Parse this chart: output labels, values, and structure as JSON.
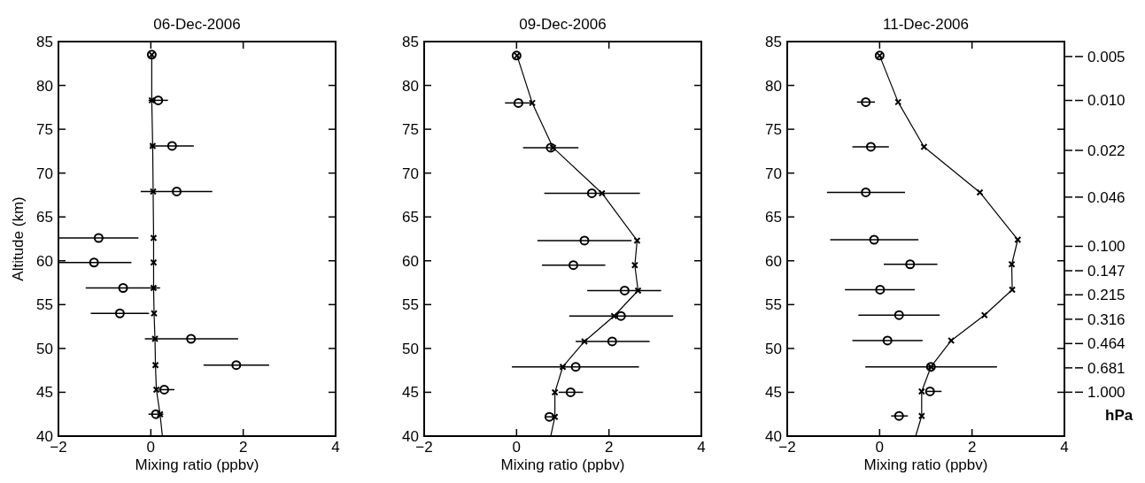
{
  "chart_data": [
    {
      "type": "scatter",
      "title": "06-Dec-2006",
      "xlabel": "Mixing ratio (ppbv)",
      "ylabel": "Altitude (km)",
      "xlim": [
        -2,
        4
      ],
      "ylim": [
        40,
        85
      ],
      "xticks": [
        -2,
        0,
        2,
        4
      ],
      "yticks": [
        40,
        45,
        50,
        55,
        60,
        65,
        70,
        75,
        80,
        85
      ],
      "series": [
        {
          "marker": "circle",
          "color": "#000000",
          "x": [
            0.02,
            0.16,
            0.46,
            0.56,
            -1.13,
            -1.23,
            -0.6,
            -0.67,
            0.87,
            1.85,
            0.29,
            0.11
          ],
          "values": [
            83.5,
            78.3,
            73.1,
            67.9,
            62.6,
            59.8,
            56.9,
            54.0,
            51.1,
            48.1,
            45.3,
            42.5
          ],
          "xerrors": [
            null,
            [
              -0.05,
              0.37
            ],
            [
              -0.02,
              0.93
            ],
            [
              -0.22,
              1.33
            ],
            [
              -2,
              -0.27
            ],
            [
              -2,
              -0.42
            ],
            [
              -1.41,
              0.2
            ],
            [
              -1.3,
              -0.04
            ],
            [
              -0.13,
              1.89
            ],
            [
              1.14,
              2.56
            ],
            [
              0.17,
              0.51
            ],
            [
              -0.05,
              0.27
            ]
          ]
        },
        {
          "type": "line",
          "marker": "cross",
          "color": "#000000",
          "x": [
            0.02,
            0.02,
            0.04,
            0.05,
            0.06,
            0.06,
            0.06,
            0.07,
            0.09,
            0.1,
            0.12,
            0.2,
            0.25
          ],
          "values": [
            83.5,
            78.3,
            73.1,
            67.9,
            62.6,
            59.8,
            56.9,
            54.0,
            51.1,
            48.1,
            45.3,
            42.5,
            40
          ]
        }
      ]
    },
    {
      "type": "scatter",
      "title": "09-Dec-2006",
      "xlabel": "Mixing ratio (ppbv)",
      "xlim": [
        -2,
        4
      ],
      "ylim": [
        40,
        85
      ],
      "xticks": [
        -2,
        0,
        2,
        4
      ],
      "yticks": [
        40,
        45,
        50,
        55,
        60,
        65,
        70,
        75,
        80,
        85
      ],
      "series": [
        {
          "marker": "circle",
          "color": "#000000",
          "x": [
            0.0,
            0.04,
            0.74,
            1.63,
            1.47,
            1.23,
            2.34,
            2.26,
            2.07,
            1.28,
            1.17,
            0.71
          ],
          "values": [
            83.4,
            78.0,
            72.9,
            67.7,
            62.3,
            59.5,
            56.6,
            53.7,
            50.8,
            47.9,
            45.0,
            42.2
          ],
          "xerrors": [
            null,
            [
              -0.25,
              0.33
            ],
            [
              0.14,
              1.34
            ],
            [
              0.6,
              2.67
            ],
            [
              0.45,
              2.49
            ],
            [
              0.55,
              1.92
            ],
            [
              1.53,
              3.13
            ],
            [
              1.14,
              3.39
            ],
            [
              1.28,
              2.88
            ],
            [
              -0.1,
              2.65
            ],
            [
              0.91,
              1.44
            ],
            [
              0.62,
              0.81
            ]
          ]
        },
        {
          "type": "line",
          "marker": "cross",
          "color": "#000000",
          "x": [
            0.01,
            0.34,
            0.79,
            1.85,
            2.61,
            2.56,
            2.63,
            2.11,
            1.47,
            1.0,
            0.83,
            0.83,
            0.74
          ],
          "values": [
            83.4,
            78.0,
            72.9,
            67.7,
            62.3,
            59.5,
            56.6,
            53.7,
            50.8,
            47.9,
            45.0,
            42.2,
            40
          ]
        }
      ]
    },
    {
      "type": "scatter",
      "title": "11-Dec-2006",
      "xlabel": "Mixing ratio (ppbv)",
      "xlim": [
        -2,
        4
      ],
      "ylim": [
        40,
        85
      ],
      "xticks": [
        -2,
        0,
        2,
        4
      ],
      "yticks": [
        40,
        45,
        50,
        55,
        60,
        65,
        70,
        75,
        80,
        85
      ],
      "y2label": "hPa",
      "log": "y2",
      "y2lim": [
        2.0,
        0.00395
      ],
      "y2ticks": [
        0.005,
        {
          "value": 0.01,
          "label": "0.010"
        },
        0.022,
        0.046,
        {
          "value": 0.1,
          "label": "0.100"
        },
        0.147,
        0.215,
        0.316,
        0.464,
        0.681,
        {
          "value": 1,
          "label": "1.000"
        }
      ],
      "series": [
        {
          "marker": "circle",
          "color": "#000000",
          "x": [
            0.0,
            -0.3,
            -0.19,
            -0.3,
            -0.12,
            0.66,
            0.01,
            0.42,
            0.17,
            1.11,
            1.09,
            0.42
          ],
          "values": [
            83.4,
            78.1,
            73.0,
            67.8,
            62.4,
            59.6,
            56.7,
            53.8,
            50.9,
            47.9,
            45.1,
            42.3
          ],
          "xerrors": [
            null,
            [
              -0.49,
              -0.1
            ],
            [
              -0.59,
              0.2
            ],
            [
              -1.14,
              0.55
            ],
            [
              -1.07,
              0.84
            ],
            [
              0.09,
              1.25
            ],
            [
              -0.75,
              0.76
            ],
            [
              -0.46,
              1.3
            ],
            [
              -0.59,
              0.93
            ],
            [
              -0.31,
              2.54
            ],
            [
              1.02,
              1.34
            ],
            [
              0.25,
              0.61
            ]
          ]
        },
        {
          "type": "line",
          "marker": "cross",
          "color": "#000000",
          "x": [
            0.0,
            0.4,
            0.96,
            2.17,
            2.99,
            2.86,
            2.87,
            2.27,
            1.55,
            1.11,
            0.91,
            0.91,
            0.78
          ],
          "values": [
            83.4,
            78.1,
            73.0,
            67.8,
            62.4,
            59.6,
            56.7,
            53.8,
            50.9,
            47.9,
            45.1,
            42.3,
            40
          ]
        }
      ]
    }
  ]
}
